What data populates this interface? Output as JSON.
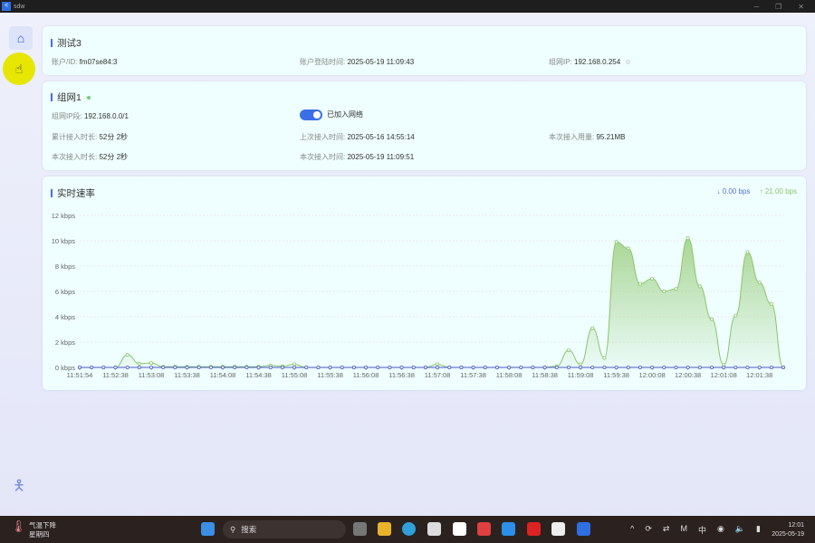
{
  "window": {
    "title": "sdw",
    "minimize": "─",
    "maximize": "❐",
    "close": "✕"
  },
  "sidebar": {
    "home_icon": "home-icon",
    "bottom_icon": "person-icon"
  },
  "account": {
    "title": "测试3",
    "id_label": "账户/ID:",
    "id_value": "fm07se84:3",
    "login_label": "账户登陆时间:",
    "login_value": "2025-05-19 11:09:43",
    "ip_label": "组网IP:",
    "ip_value": "192.168.0.254",
    "copy_icon": "©"
  },
  "network": {
    "title": "组网1",
    "status_color": "#6fd06f",
    "segment_label": "组网IP段:",
    "segment_value": "192.168.0.0/1",
    "toggle_on": true,
    "toggle_label": "已加入网络",
    "total_label": "累计接入时长:",
    "total_value": "52分 2秒",
    "last_label": "上次接入时间:",
    "last_value": "2025-05-16 14:55:14",
    "usage_label": "本次接入用量:",
    "usage_value": "95.21MB",
    "cur_dur_label": "本次接入时长:",
    "cur_dur_value": "52分 2秒",
    "cur_time_label": "本次接入时间:",
    "cur_time_value": "2025-05-19 11:09:51"
  },
  "speed": {
    "title": "实时速率",
    "down": "↓ 0.00 bps",
    "up": "↑ 21.00 bps",
    "down_color": "#5b6fd8",
    "up_color": "#8cc56a"
  },
  "chart_data": {
    "type": "area",
    "ylim": [
      0,
      12
    ],
    "yticks": [
      "0 kbps",
      "2 kbps",
      "4 kbps",
      "6 kbps",
      "8 kbps",
      "10 kbps",
      "12 kbps"
    ],
    "xticks": [
      "11:51:54",
      "11:52:38",
      "11:53:08",
      "11:53:38",
      "11:54:08",
      "11:54:38",
      "11:55:08",
      "11:55:38",
      "11:56:08",
      "11:56:38",
      "11:57:08",
      "11:57:38",
      "11:58:08",
      "11:58:38",
      "11:59:08",
      "11:59:38",
      "12:00:08",
      "12:00:38",
      "12:01:08",
      "12:01:38"
    ],
    "grid": true,
    "series": [
      {
        "color": "#8cc56a",
        "values": [
          0,
          0,
          0,
          0,
          1.0,
          0.3,
          0.35,
          0.05,
          0.05,
          0.05,
          0.05,
          0.05,
          0.05,
          0.05,
          0.05,
          0.05,
          0.15,
          0.1,
          0.25,
          0,
          0,
          0,
          0,
          0,
          0,
          0,
          0,
          0,
          0,
          0,
          0.25,
          0,
          0,
          0,
          0,
          0,
          0,
          0,
          0,
          0,
          0.1,
          1.35,
          0.25,
          3.1,
          0.75,
          9.9,
          9.4,
          6.6,
          7.0,
          6.0,
          6.2,
          10.2,
          6.4,
          3.8,
          0.2,
          4.1,
          9.1,
          6.7,
          5.0,
          0
        ]
      },
      {
        "color": "#4a5ac8",
        "values": [
          0,
          0,
          0,
          0,
          0,
          0,
          0,
          0,
          0,
          0,
          0,
          0,
          0,
          0,
          0,
          0,
          0,
          0,
          0,
          0,
          0,
          0,
          0,
          0,
          0,
          0,
          0,
          0,
          0,
          0,
          0,
          0,
          0,
          0,
          0,
          0,
          0,
          0,
          0,
          0,
          0,
          0,
          0,
          0,
          0,
          0,
          0,
          0,
          0,
          0,
          0,
          0,
          0,
          0,
          0,
          0,
          0,
          0,
          0,
          0
        ]
      }
    ]
  },
  "taskbar": {
    "weather": "气温下降",
    "weekday": "星期四",
    "search": "搜索",
    "tray": [
      "^",
      "⟳",
      "⇄",
      "M",
      "中",
      "◉",
      "🔈",
      "▮"
    ],
    "time": "12:01",
    "date": "2025-05-19"
  }
}
